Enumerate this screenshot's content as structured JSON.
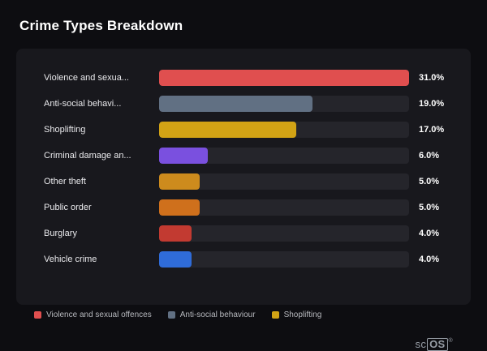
{
  "title": "Crime Types Breakdown",
  "chart_data": {
    "type": "bar",
    "orientation": "horizontal",
    "title": "Crime Types Breakdown",
    "xlabel": "",
    "ylabel": "",
    "xlim": [
      0,
      31
    ],
    "grid": false,
    "legend_position": "bottom",
    "categories": [
      "Violence and sexua...",
      "Anti-social behavi...",
      "Shoplifting",
      "Criminal damage an...",
      "Other theft",
      "Public order",
      "Burglary",
      "Vehicle crime"
    ],
    "values": [
      31.0,
      19.0,
      17.0,
      6.0,
      5.0,
      5.0,
      4.0,
      4.0
    ],
    "value_labels": [
      "31.0%",
      "19.0%",
      "17.0%",
      "6.0%",
      "5.0%",
      "5.0%",
      "4.0%",
      "4.0%"
    ],
    "bar_colors": [
      "#e04f4f",
      "#617083",
      "#d2a315",
      "#7a50df",
      "#cd8b1d",
      "#cf701c",
      "#c23a31",
      "#2f6cd9"
    ],
    "track_color": "#25252b",
    "max_value": 31
  },
  "legend": [
    {
      "label": "Violence and sexual offences",
      "color": "#e04f4f"
    },
    {
      "label": "Anti-social behaviour",
      "color": "#617083"
    },
    {
      "label": "Shoplifting",
      "color": "#d2a315"
    }
  ],
  "watermark": {
    "prefix": "sc",
    "boxed": "OS",
    "registered": "®"
  },
  "colors": {
    "background": "#0d0d11",
    "card": "#18181d",
    "title_text": "#ffffff",
    "label_text": "#e9e9ec",
    "value_text": "#ffffff",
    "legend_text": "#b7b9be"
  }
}
